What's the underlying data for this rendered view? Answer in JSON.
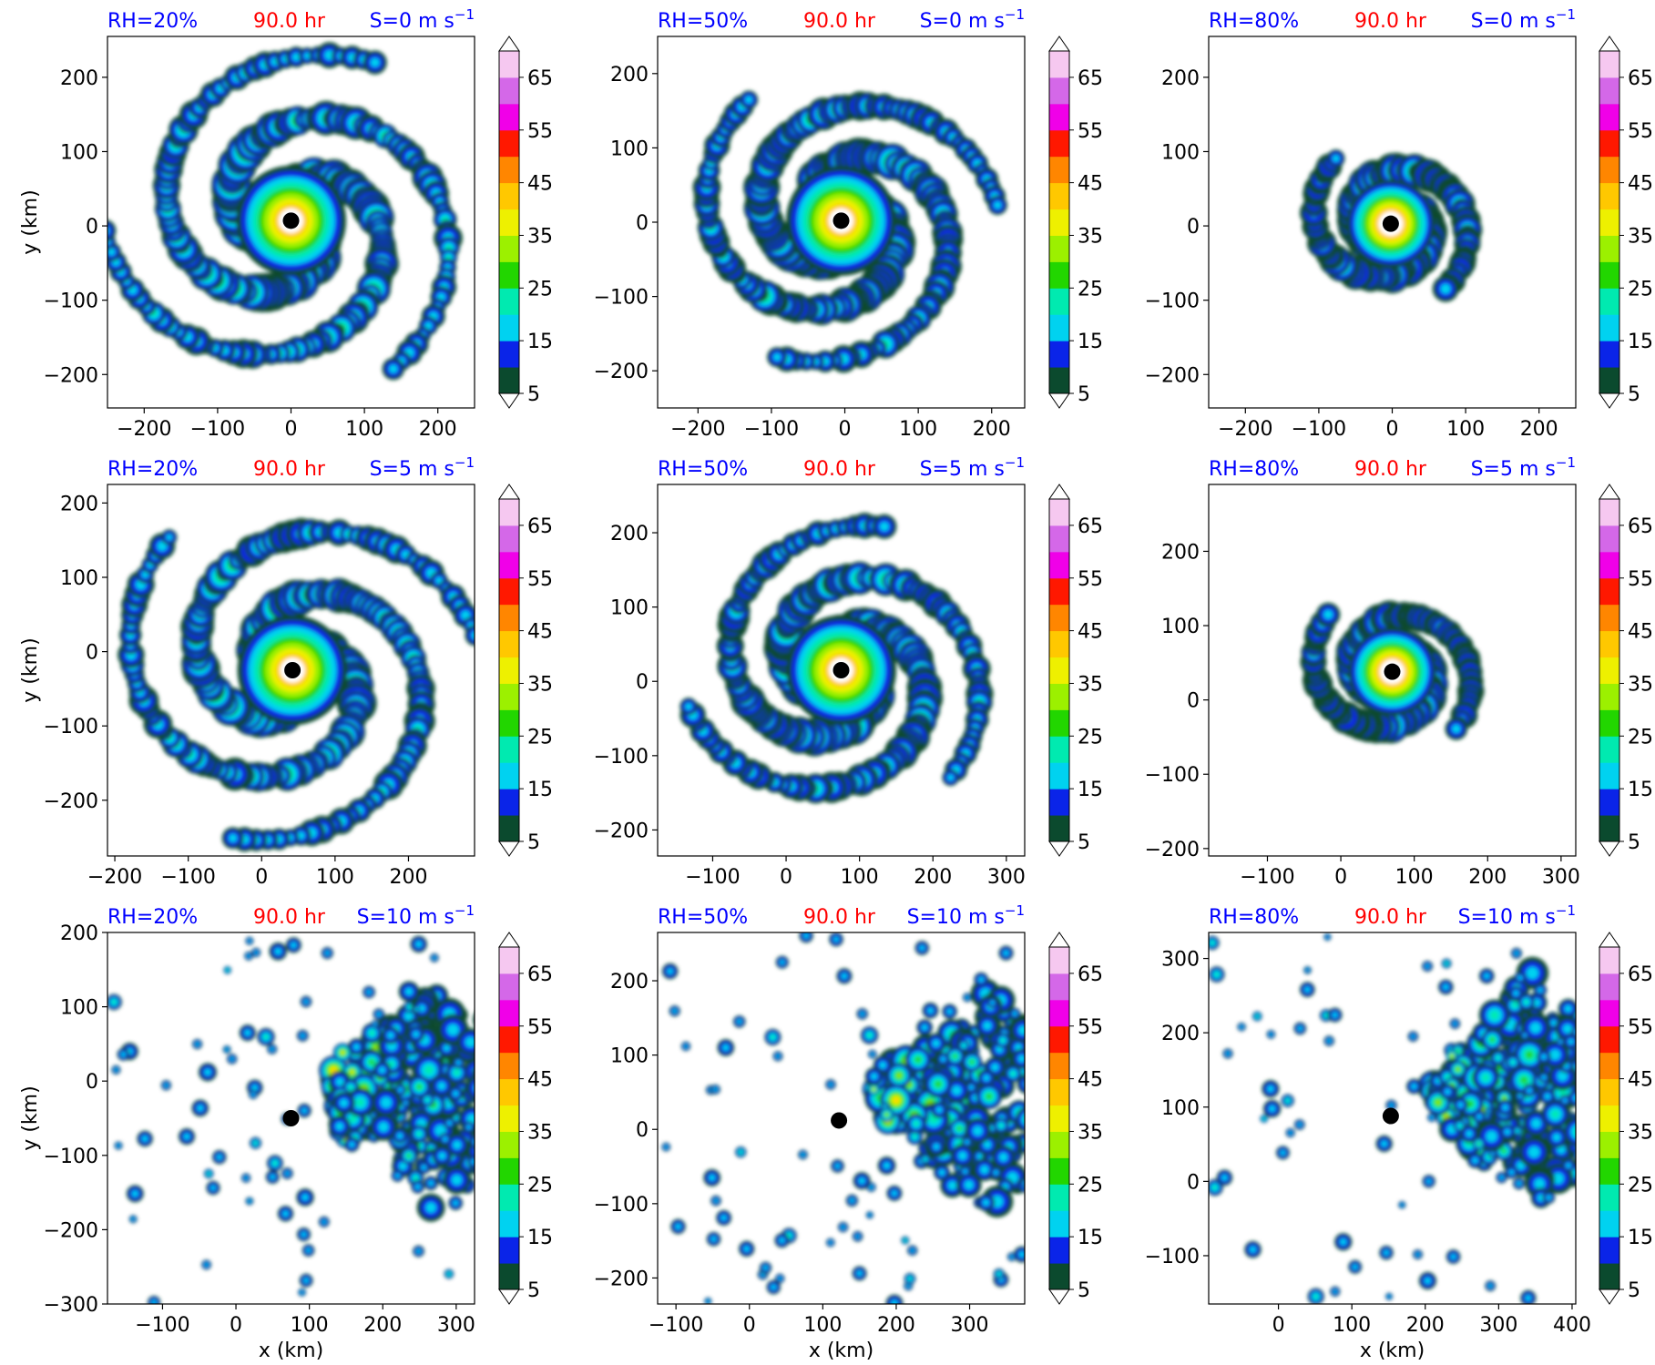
{
  "figure": {
    "time_label": "90.0 hr",
    "colorbar_ticks": [
      "5",
      "15",
      "25",
      "35",
      "45",
      "55",
      "65"
    ],
    "colorbar_colors": [
      "#0b4a2e",
      "#0a24e8",
      "#00d2f0",
      "#00eab0",
      "#22d600",
      "#9cf000",
      "#eef000",
      "#ffc800",
      "#ff8600",
      "#ff1800",
      "#f000e8",
      "#d468e8",
      "#f6c8f0"
    ],
    "xlabel": "x (km)",
    "ylabel": "y (km)"
  },
  "chart_data": [
    {
      "type": "heatmap",
      "rh": "RH=20%",
      "shear": "S=0",
      "time": "90.0 hr",
      "xlim": [
        -250,
        250
      ],
      "ylim": [
        -245,
        255
      ],
      "xticks": [
        -200,
        -100,
        0,
        100,
        200
      ],
      "yticks": [
        -200,
        -100,
        0,
        100,
        200
      ],
      "center": [
        0,
        7
      ],
      "pattern": "spiral",
      "colorbar_ticks": [
        "5",
        "15",
        "25",
        "35",
        "45",
        "55",
        "65"
      ],
      "xlabel": "",
      "ylabel": "y (km)"
    },
    {
      "type": "heatmap",
      "rh": "RH=50%",
      "shear": "S=0",
      "time": "90.0 hr",
      "xlim": [
        -255,
        245
      ],
      "ylim": [
        -250,
        250
      ],
      "xticks": [
        -200,
        -100,
        0,
        100,
        200
      ],
      "yticks": [
        -200,
        -100,
        0,
        100,
        200
      ],
      "center": [
        -5,
        2
      ],
      "pattern": "broad",
      "colorbar_ticks": [
        "5",
        "15",
        "25",
        "35",
        "45",
        "55",
        "65"
      ],
      "xlabel": "",
      "ylabel": ""
    },
    {
      "type": "heatmap",
      "rh": "RH=80%",
      "shear": "S=0",
      "time": "90.0 hr",
      "xlim": [
        -250,
        250
      ],
      "ylim": [
        -245,
        255
      ],
      "xticks": [
        -200,
        -100,
        0,
        100,
        200
      ],
      "yticks": [
        -200,
        -100,
        0,
        100,
        200
      ],
      "center": [
        -2,
        3
      ],
      "pattern": "compact",
      "colorbar_ticks": [
        "5",
        "15",
        "25",
        "35",
        "45",
        "55",
        "65"
      ],
      "xlabel": "",
      "ylabel": ""
    },
    {
      "type": "heatmap",
      "rh": "RH=20%",
      "shear": "S=5",
      "time": "90.0 hr",
      "xlim": [
        -210,
        290
      ],
      "ylim": [
        -275,
        225
      ],
      "xticks": [
        -200,
        -100,
        0,
        100,
        200
      ],
      "yticks": [
        -200,
        -100,
        0,
        100,
        200
      ],
      "center": [
        42,
        -25
      ],
      "pattern": "spiral",
      "colorbar_ticks": [
        "5",
        "15",
        "25",
        "35",
        "45",
        "55",
        "65"
      ],
      "xlabel": "",
      "ylabel": "y (km)"
    },
    {
      "type": "heatmap",
      "rh": "RH=50%",
      "shear": "S=5",
      "time": "90.0 hr",
      "xlim": [
        -175,
        325
      ],
      "ylim": [
        -235,
        265
      ],
      "xticks": [
        -100,
        0,
        100,
        200,
        300
      ],
      "yticks": [
        -200,
        -100,
        0,
        100,
        200
      ],
      "center": [
        75,
        15
      ],
      "pattern": "broad",
      "colorbar_ticks": [
        "5",
        "15",
        "25",
        "35",
        "45",
        "55",
        "65"
      ],
      "xlabel": "",
      "ylabel": ""
    },
    {
      "type": "heatmap",
      "rh": "RH=80%",
      "shear": "S=5",
      "time": "90.0 hr",
      "xlim": [
        -180,
        320
      ],
      "ylim": [
        -210,
        290
      ],
      "xticks": [
        -100,
        0,
        100,
        200,
        300
      ],
      "yticks": [
        -200,
        -100,
        0,
        100,
        200
      ],
      "center": [
        70,
        38
      ],
      "pattern": "compact",
      "colorbar_ticks": [
        "5",
        "15",
        "25",
        "35",
        "45",
        "55",
        "65"
      ],
      "xlabel": "",
      "ylabel": ""
    },
    {
      "type": "heatmap",
      "rh": "RH=20%",
      "shear": "S=10",
      "time": "90.0 hr",
      "xlim": [
        -175,
        325
      ],
      "ylim": [
        -300,
        200
      ],
      "xticks": [
        -100,
        0,
        100,
        200,
        300
      ],
      "yticks": [
        -300,
        -200,
        -100,
        0,
        100,
        200
      ],
      "center": [
        75,
        -50
      ],
      "pattern": "sheared",
      "colorbar_ticks": [
        "5",
        "15",
        "25",
        "35",
        "45",
        "55",
        "65"
      ],
      "xlabel": "x (km)",
      "ylabel": "y (km)"
    },
    {
      "type": "heatmap",
      "rh": "RH=50%",
      "shear": "S=10",
      "time": "90.0 hr",
      "xlim": [
        -125,
        375
      ],
      "ylim": [
        -235,
        265
      ],
      "xticks": [
        -100,
        0,
        100,
        200,
        300
      ],
      "yticks": [
        -200,
        -100,
        0,
        100,
        200
      ],
      "center": [
        122,
        12
      ],
      "pattern": "sheared",
      "colorbar_ticks": [
        "5",
        "15",
        "25",
        "35",
        "45",
        "55",
        "65"
      ],
      "xlabel": "x (km)",
      "ylabel": ""
    },
    {
      "type": "heatmap",
      "rh": "RH=80%",
      "shear": "S=10",
      "time": "90.0 hr",
      "xlim": [
        -95,
        405
      ],
      "ylim": [
        -165,
        335
      ],
      "xticks": [
        0,
        100,
        200,
        300,
        400
      ],
      "yticks": [
        -100,
        0,
        100,
        200,
        300
      ],
      "center": [
        153,
        88
      ],
      "pattern": "sheared",
      "colorbar_ticks": [
        "5",
        "15",
        "25",
        "35",
        "45",
        "55",
        "65"
      ],
      "xlabel": "x (km)",
      "ylabel": ""
    }
  ]
}
